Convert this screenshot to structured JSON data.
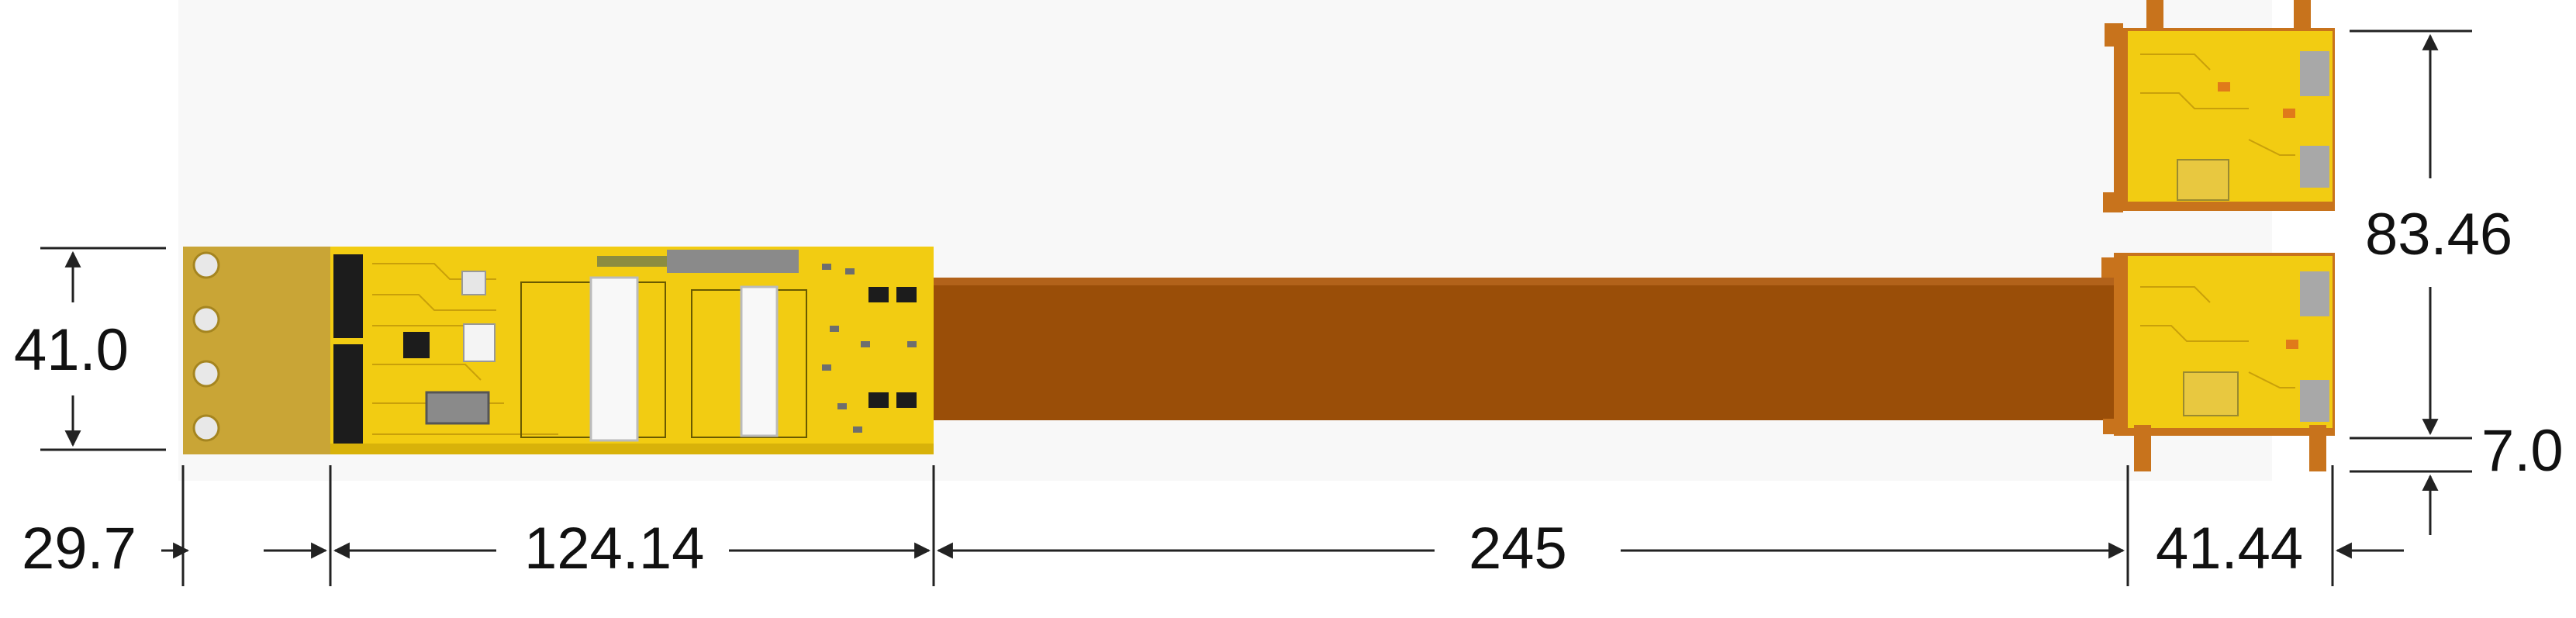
{
  "colors": {
    "pcb_yellow": "#f2cc12",
    "pcb_yellow_dark": "#d8b20a",
    "flex_brown": "#9a4e08",
    "flex_orange": "#c8731c",
    "tab_tan": "#c9a536",
    "dimension_line": "#222222",
    "component_black": "#1c1c1c",
    "component_gray": "#8a8a8a"
  },
  "dimensions": {
    "height_left": "41.0",
    "width_tab": "29.7",
    "width_board": "124.14",
    "width_flex": "245",
    "width_right": "41.44",
    "height_right": "83.46",
    "gap_right": "7.0"
  }
}
